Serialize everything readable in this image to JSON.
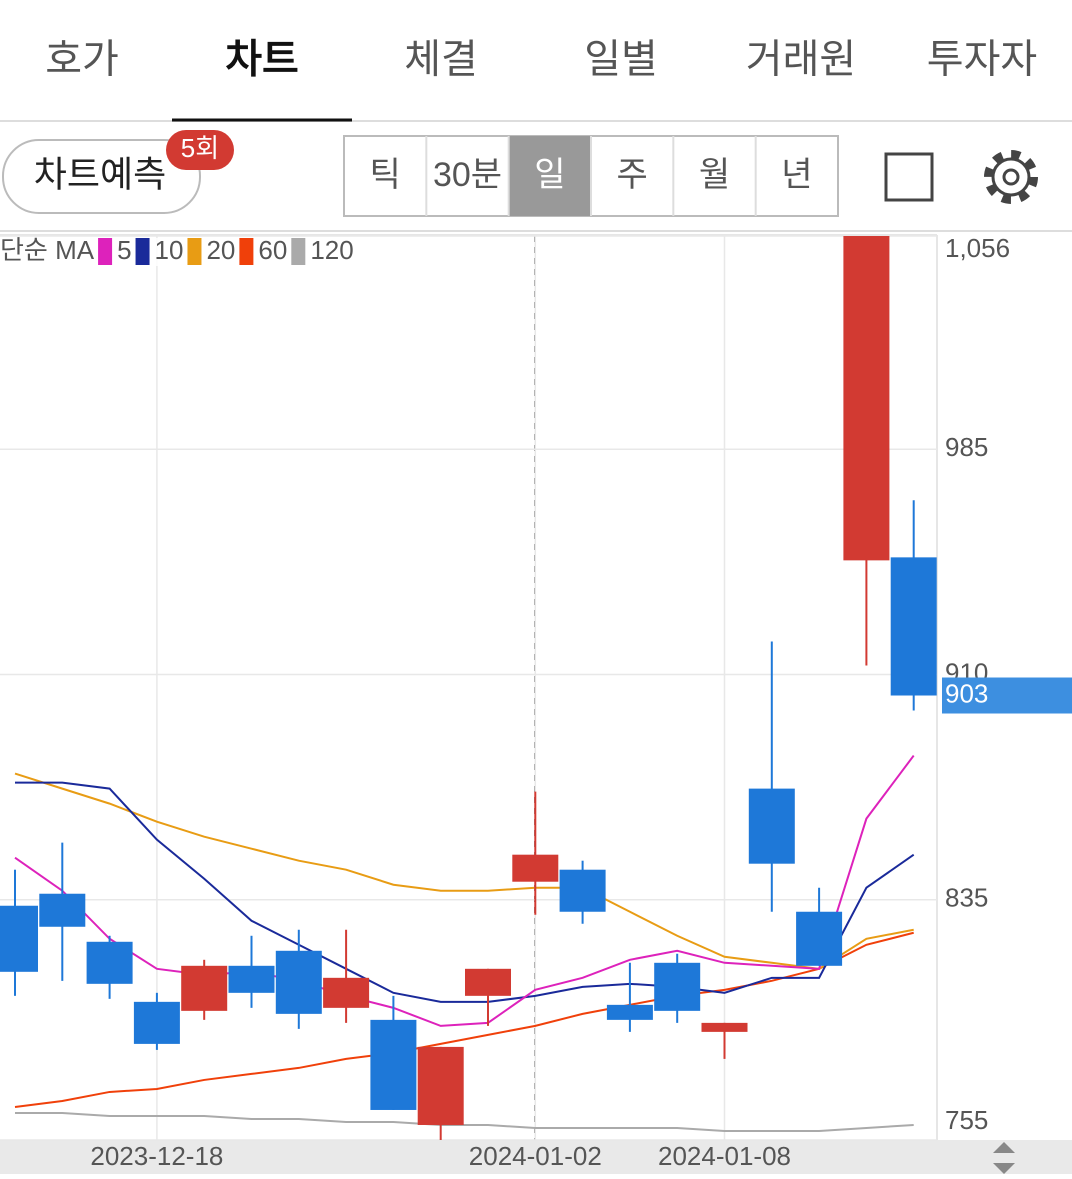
{
  "tabs": [
    {
      "label": "호가"
    },
    {
      "label": "차트",
      "active": true
    },
    {
      "label": "체결"
    },
    {
      "label": "일별"
    },
    {
      "label": "거래원"
    },
    {
      "label": "투자자"
    }
  ],
  "toolbar": {
    "predict_button": {
      "label": "차트예측",
      "badge": "5회"
    },
    "periods": [
      {
        "label": "틱"
      },
      {
        "label": "30분"
      },
      {
        "label": "일",
        "active": true
      },
      {
        "label": "주"
      },
      {
        "label": "월"
      },
      {
        "label": "년"
      }
    ]
  },
  "chart_data": {
    "type": "candlestick",
    "categories": [
      null,
      null,
      null,
      "2023-12-18",
      null,
      null,
      null,
      null,
      null,
      null,
      null,
      "2024-01-02",
      null,
      null,
      null,
      "2024-01-08",
      null,
      null,
      null,
      null
    ],
    "open": [
      833,
      837,
      821,
      801,
      798,
      813,
      818,
      799,
      795,
      760,
      803,
      841,
      845,
      800,
      814,
      791,
      872,
      831,
      948,
      949
    ],
    "high": [
      845,
      854,
      823,
      804,
      815,
      823,
      825,
      825,
      803,
      786,
      812,
      871,
      848,
      814,
      817,
      794,
      921,
      839,
      1056,
      968
    ],
    "low": [
      803,
      808,
      802,
      785,
      795,
      799,
      792,
      794,
      765,
      755,
      793,
      830,
      827,
      791,
      794,
      782,
      831,
      813,
      913,
      898
    ],
    "close": [
      811,
      826,
      807,
      787,
      813,
      804,
      797,
      809,
      765,
      786,
      812,
      850,
      831,
      795,
      798,
      794,
      847,
      813,
      1056,
      903
    ],
    "up_color": "#d23a32",
    "down_color": "#1e78d8",
    "ma_label": "단순 MA",
    "moving_averages": [
      {
        "name": "5",
        "color": "#dd22bb",
        "values": [
          849,
          838,
          822,
          812,
          810,
          811,
          808,
          803,
          799,
          793,
          794,
          805,
          809,
          815,
          818,
          814,
          813,
          812,
          862,
          883
        ]
      },
      {
        "name": "10",
        "color": "#1a2a9a",
        "values": [
          874,
          874,
          872,
          855,
          842,
          828,
          820,
          812,
          804,
          801,
          801,
          803,
          806,
          807,
          806,
          804,
          809,
          809,
          839,
          850
        ]
      },
      {
        "name": "20",
        "color": "#e89c14",
        "values": [
          877,
          872,
          867,
          861,
          856,
          852,
          848,
          845,
          840,
          838,
          838,
          839,
          839,
          831,
          823,
          816,
          814,
          812,
          822,
          825
        ]
      },
      {
        "name": "60",
        "color": "#f0400a",
        "values": [
          766,
          768,
          771,
          772,
          775,
          777,
          779,
          782,
          784,
          787,
          790,
          793,
          797,
          800,
          803,
          805,
          808,
          812,
          820,
          824
        ]
      },
      {
        "name": "120",
        "color": "#aaaaaa",
        "values": [
          764,
          764,
          763,
          763,
          763,
          762,
          762,
          761,
          761,
          760,
          760,
          759,
          759,
          759,
          759,
          758,
          758,
          758,
          759,
          760
        ]
      }
    ],
    "ylim": [
      755,
      1056
    ],
    "yticks": [
      {
        "value": 1056,
        "label": "1,056"
      },
      985,
      910,
      835,
      755
    ],
    "grid": true,
    "last_price": 903
  }
}
